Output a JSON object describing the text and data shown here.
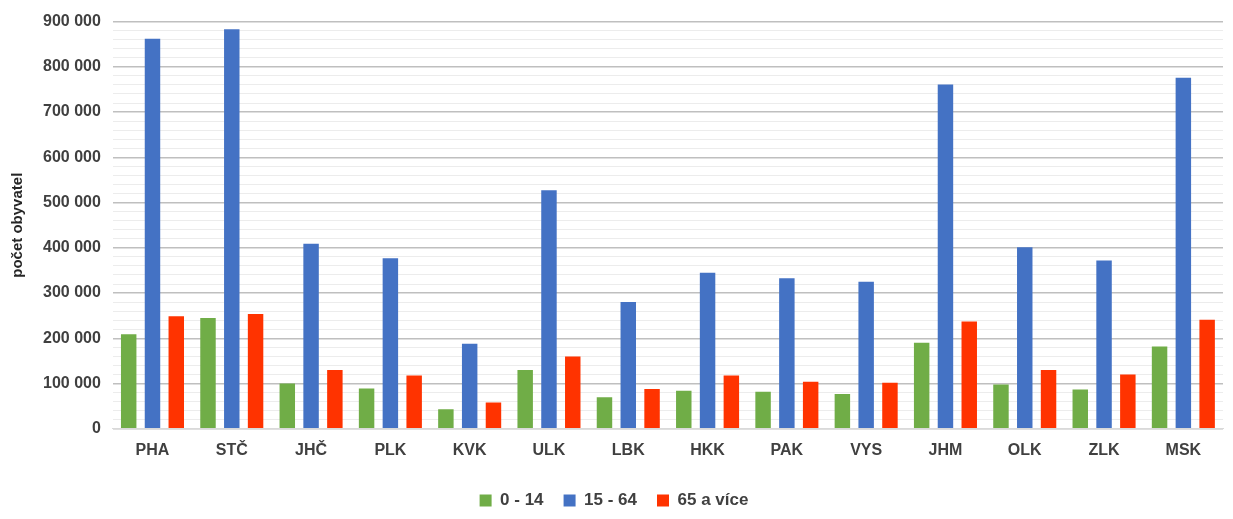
{
  "chart_data": {
    "type": "bar",
    "ylabel": "počet obyvatel",
    "categories": [
      "PHA",
      "STČ",
      "JHČ",
      "PLK",
      "KVK",
      "ULK",
      "LBK",
      "HKK",
      "PAK",
      "VYS",
      "JHM",
      "OLK",
      "ZLK",
      "MSK"
    ],
    "series": [
      {
        "name": "0 - 14",
        "color": "#70ad47",
        "values": [
          209000,
          245000,
          100000,
          89000,
          43000,
          130000,
          70000,
          84000,
          82000,
          77000,
          190000,
          98000,
          87000,
          182000
        ]
      },
      {
        "name": "15 - 64",
        "color": "#4472c4",
        "values": [
          862000,
          883000,
          409000,
          377000,
          188000,
          527000,
          280000,
          345000,
          333000,
          325000,
          761000,
          401000,
          372000,
          776000
        ]
      },
      {
        "name": "65 a více",
        "color": "#ff3300",
        "values": [
          249000,
          254000,
          130000,
          118000,
          58000,
          160000,
          88000,
          118000,
          104000,
          102000,
          237000,
          130000,
          120000,
          241000
        ]
      }
    ],
    "ylim": [
      0,
      900000
    ],
    "yticks": [
      {
        "value": 0,
        "label": "0"
      },
      {
        "value": 20000,
        "label": null
      },
      {
        "value": 40000,
        "label": null
      },
      {
        "value": 60000,
        "label": null
      },
      {
        "value": 80000,
        "label": null
      },
      {
        "value": 100000,
        "label": "100 000"
      },
      {
        "value": 120000,
        "label": null
      },
      {
        "value": 140000,
        "label": null
      },
      {
        "value": 160000,
        "label": null
      },
      {
        "value": 180000,
        "label": null
      },
      {
        "value": 200000,
        "label": "200 000"
      },
      {
        "value": 220000,
        "label": null
      },
      {
        "value": 240000,
        "label": null
      },
      {
        "value": 260000,
        "label": null
      },
      {
        "value": 280000,
        "label": null
      },
      {
        "value": 300000,
        "label": "300 000"
      },
      {
        "value": 320000,
        "label": null
      },
      {
        "value": 340000,
        "label": null
      },
      {
        "value": 360000,
        "label": null
      },
      {
        "value": 380000,
        "label": null
      },
      {
        "value": 400000,
        "label": "400 000"
      },
      {
        "value": 420000,
        "label": null
      },
      {
        "value": 440000,
        "label": null
      },
      {
        "value": 460000,
        "label": null
      },
      {
        "value": 480000,
        "label": null
      },
      {
        "value": 500000,
        "label": "500 000"
      },
      {
        "value": 520000,
        "label": null
      },
      {
        "value": 540000,
        "label": null
      },
      {
        "value": 560000,
        "label": null
      },
      {
        "value": 580000,
        "label": null
      },
      {
        "value": 600000,
        "label": "600 000"
      },
      {
        "value": 620000,
        "label": null
      },
      {
        "value": 640000,
        "label": null
      },
      {
        "value": 660000,
        "label": null
      },
      {
        "value": 680000,
        "label": null
      },
      {
        "value": 700000,
        "label": "700 000"
      },
      {
        "value": 720000,
        "label": null
      },
      {
        "value": 740000,
        "label": null
      },
      {
        "value": 760000,
        "label": null
      },
      {
        "value": 780000,
        "label": null
      },
      {
        "value": 800000,
        "label": "800 000"
      },
      {
        "value": 820000,
        "label": null
      },
      {
        "value": 840000,
        "label": null
      },
      {
        "value": 860000,
        "label": null
      },
      {
        "value": 880000,
        "label": null
      },
      {
        "value": 900000,
        "label": "900 000"
      }
    ],
    "grid": "y",
    "legend": "bottom"
  }
}
